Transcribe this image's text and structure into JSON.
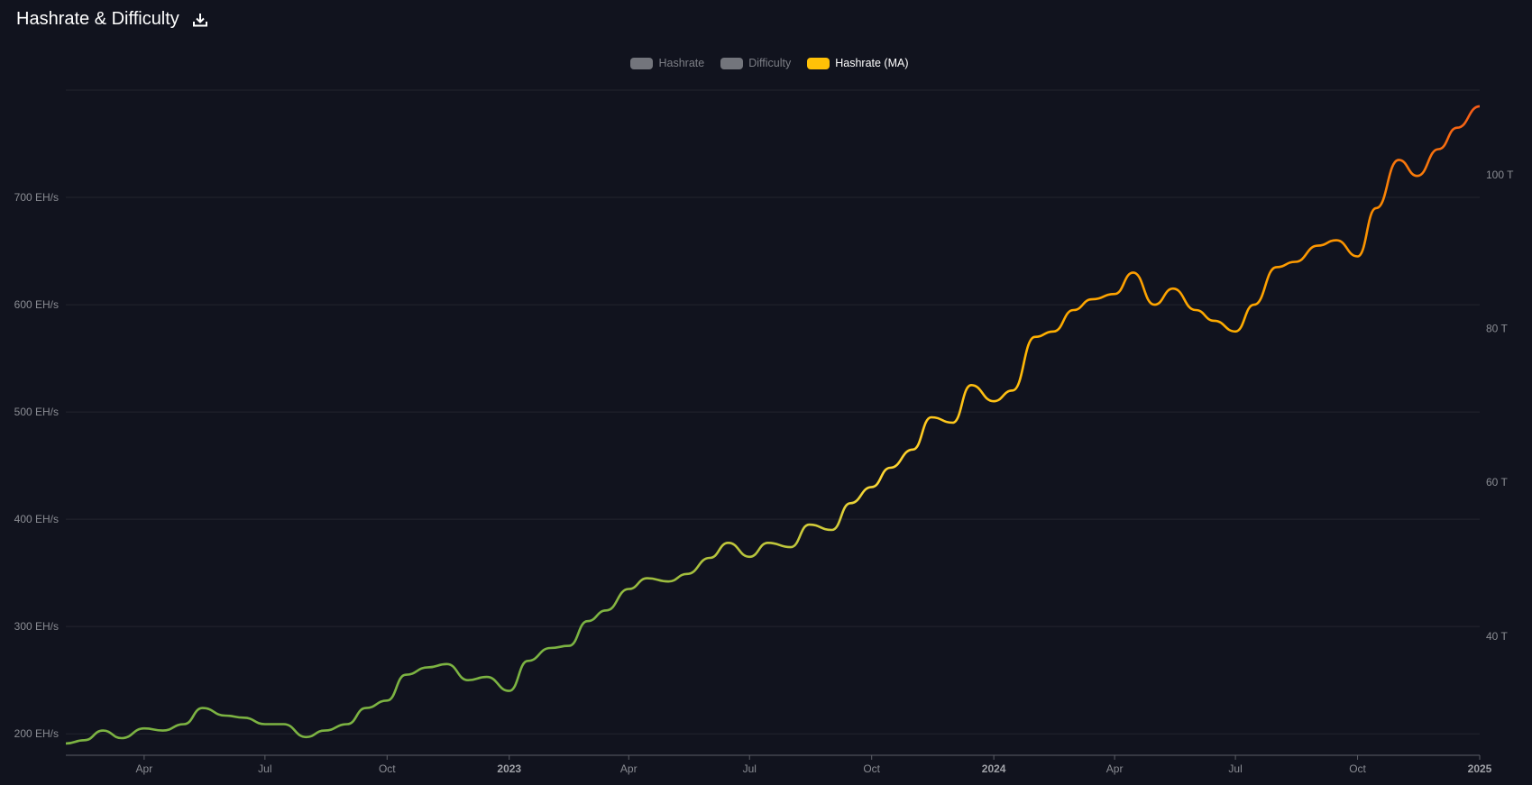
{
  "header": {
    "title": "Hashrate & Difficulty",
    "download_icon": "download-icon"
  },
  "legend": {
    "items": [
      {
        "label": "Hashrate",
        "active": false
      },
      {
        "label": "Difficulty",
        "active": false
      },
      {
        "label": "Hashrate (MA)",
        "active": true,
        "color": "#ffc107"
      }
    ]
  },
  "colors": {
    "background": "#11131e",
    "gridline": "#23252f",
    "axis": "#5c5e66",
    "line_gradient": [
      "#7cb342",
      "#7cb342",
      "#fdd835",
      "#ffb300",
      "#fb8c00",
      "#f4511e"
    ]
  },
  "chart_data": {
    "type": "line",
    "series": [
      {
        "name": "Hashrate (MA)",
        "x": [
          "2022-02-01",
          "2022-02-15",
          "2022-03-01",
          "2022-03-15",
          "2022-04-01",
          "2022-04-15",
          "2022-05-01",
          "2022-05-15",
          "2022-06-01",
          "2022-06-15",
          "2022-07-01",
          "2022-07-15",
          "2022-08-01",
          "2022-08-15",
          "2022-09-01",
          "2022-09-15",
          "2022-10-01",
          "2022-10-15",
          "2022-11-01",
          "2022-11-15",
          "2022-12-01",
          "2022-12-15",
          "2023-01-01",
          "2023-01-15",
          "2023-02-01",
          "2023-02-15",
          "2023-03-01",
          "2023-03-15",
          "2023-04-01",
          "2023-04-15",
          "2023-05-01",
          "2023-05-15",
          "2023-06-01",
          "2023-06-15",
          "2023-07-01",
          "2023-07-15",
          "2023-08-01",
          "2023-08-15",
          "2023-09-01",
          "2023-09-15",
          "2023-10-01",
          "2023-10-15",
          "2023-11-01",
          "2023-11-15",
          "2023-12-01",
          "2023-12-15",
          "2024-01-01",
          "2024-01-15",
          "2024-02-01",
          "2024-02-15",
          "2024-03-01",
          "2024-03-15",
          "2024-04-01",
          "2024-04-15",
          "2024-05-01",
          "2024-05-15",
          "2024-06-01",
          "2024-06-15",
          "2024-07-01",
          "2024-07-15",
          "2024-08-01",
          "2024-08-15",
          "2024-09-01",
          "2024-09-15",
          "2024-10-01",
          "2024-10-15",
          "2024-11-01",
          "2024-11-15",
          "2024-12-01",
          "2024-12-15",
          "2025-01-01"
        ],
        "values": [
          191,
          194,
          203,
          196,
          205,
          203,
          209,
          224,
          217,
          215,
          209,
          209,
          197,
          203,
          209,
          224,
          231,
          255,
          262,
          265,
          250,
          253,
          240,
          268,
          280,
          282,
          305,
          315,
          335,
          345,
          342,
          349,
          364,
          378,
          365,
          378,
          374,
          395,
          390,
          415,
          430,
          448,
          465,
          495,
          490,
          525,
          510,
          520,
          570,
          575,
          595,
          605,
          610,
          630,
          600,
          615,
          595,
          585,
          575,
          600,
          635,
          640,
          655,
          660,
          645,
          690,
          735,
          720,
          745,
          765,
          785
        ]
      }
    ],
    "xticks": [
      "Apr",
      "Jul",
      "Oct",
      "2023",
      "Apr",
      "Jul",
      "Oct",
      "2024",
      "Apr",
      "Jul",
      "Oct",
      "2025"
    ],
    "yticks_left": [
      "200 EH/s",
      "300 EH/s",
      "400 EH/s",
      "500 EH/s",
      "600 EH/s",
      "700 EH/s"
    ],
    "yticks_right": [
      "40 T",
      "60 T",
      "80 T",
      "100 T"
    ],
    "ylim_left": [
      180,
      800
    ],
    "ylim_right": [
      24.5,
      111
    ],
    "xlim": [
      "2022-02-01",
      "2025-01-01"
    ],
    "grid": true,
    "legend_position": "top-center"
  }
}
